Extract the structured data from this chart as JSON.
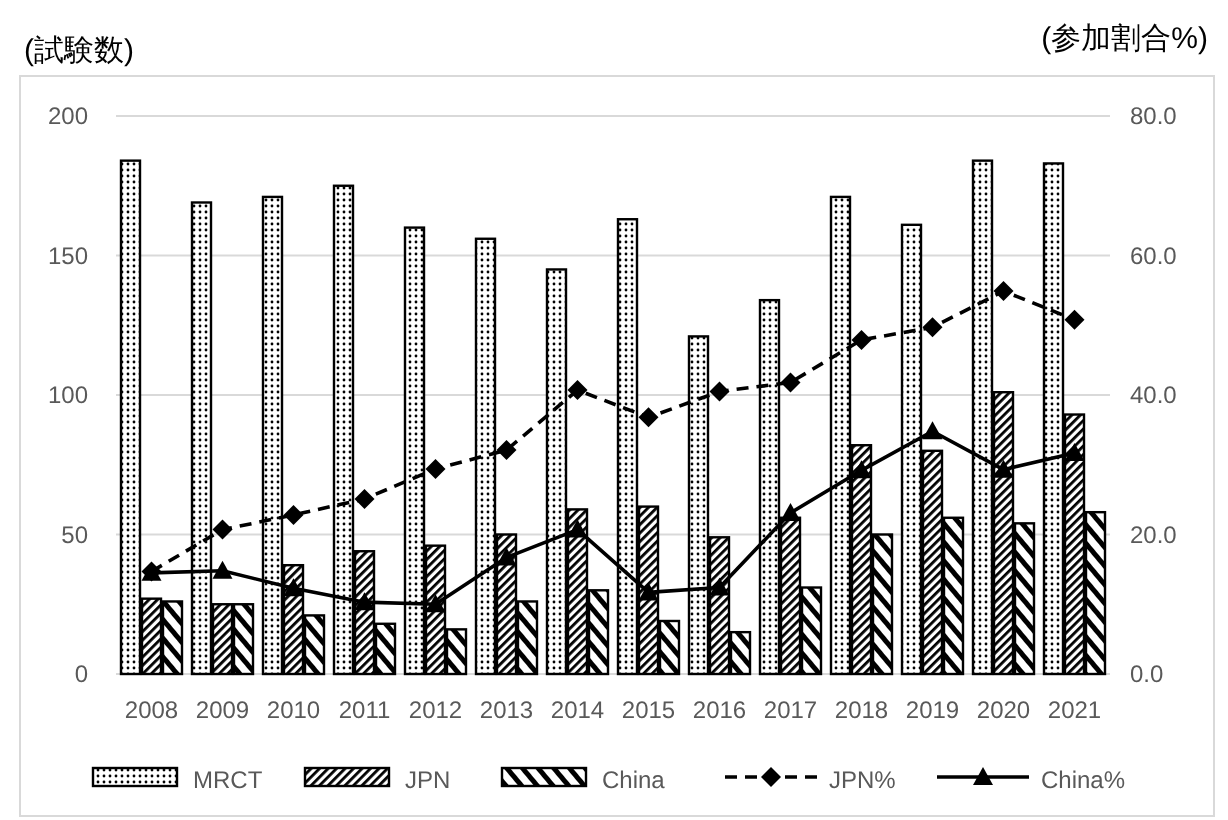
{
  "chart_data": {
    "type": "bar",
    "ylabel": "(試験数)",
    "y2label": "(参加割合%)",
    "categories": [
      "2008",
      "2009",
      "2010",
      "2011",
      "2012",
      "2013",
      "2014",
      "2015",
      "2016",
      "2017",
      "2018",
      "2019",
      "2020",
      "2021"
    ],
    "series": [
      {
        "name": "MRCT",
        "color": "#000000",
        "values": [
          184,
          169,
          171,
          175,
          160,
          156,
          145,
          163,
          121,
          134,
          171,
          161,
          184,
          183
        ]
      },
      {
        "name": "JPN",
        "color": "#000000",
        "values": [
          27,
          25,
          39,
          44,
          46,
          50,
          59,
          60,
          49,
          56,
          82,
          80,
          101,
          93
        ]
      },
      {
        "name": "China",
        "color": "#000000",
        "values": [
          26,
          25,
          21,
          18,
          16,
          26,
          30,
          19,
          15,
          31,
          50,
          56,
          54,
          58
        ]
      },
      {
        "name": "JPN%",
        "type": "line",
        "axis": "y2",
        "color": "#000000",
        "marker": "diamond",
        "line_style": "dashed",
        "values": [
          14.7,
          20.7,
          22.8,
          25.1,
          29.4,
          32.1,
          40.7,
          36.8,
          40.5,
          41.8,
          47.9,
          49.7,
          54.9,
          50.8
        ]
      },
      {
        "name": "China%",
        "type": "line",
        "axis": "y2",
        "color": "#000000",
        "marker": "triangle",
        "line_style": "solid",
        "values": [
          14.5,
          14.8,
          12.3,
          10.3,
          10.0,
          16.7,
          20.7,
          11.7,
          12.4,
          23.1,
          29.2,
          34.8,
          29.3,
          31.7
        ]
      }
    ],
    "ylim": [
      0,
      200
    ],
    "yticks": [
      0,
      50,
      100,
      150,
      200
    ],
    "y2lim": [
      0,
      80
    ],
    "y2ticks": [
      {
        "value": 0,
        "label": "0.0"
      },
      {
        "value": 20,
        "label": "20.0"
      },
      {
        "value": 40,
        "label": "40.0"
      },
      {
        "value": 60,
        "label": "60.0"
      },
      {
        "value": 80,
        "label": "80.0"
      }
    ],
    "grid": "y",
    "legend": "bottom"
  }
}
